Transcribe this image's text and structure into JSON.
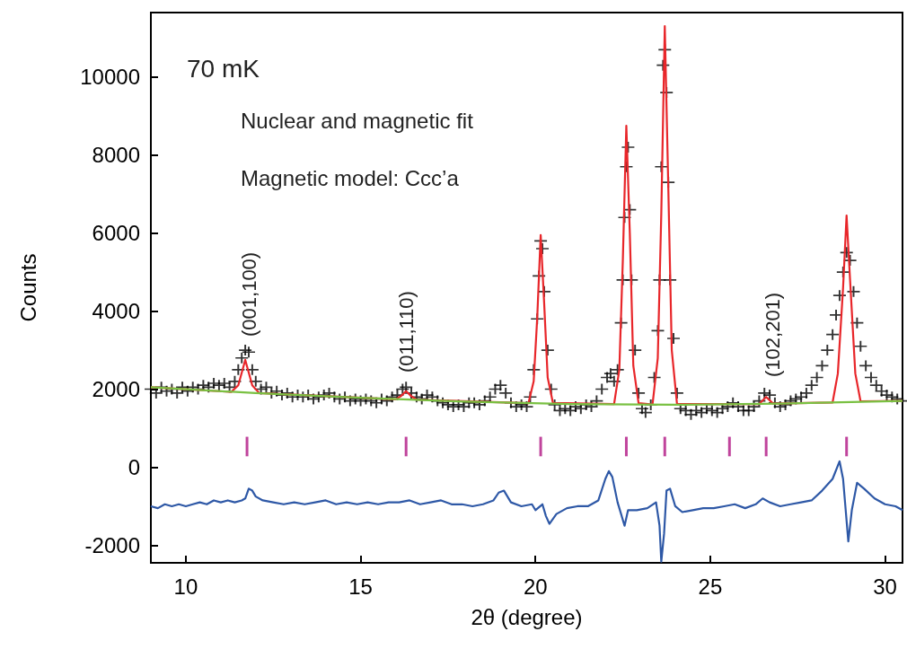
{
  "chart_data": {
    "type": "scatter",
    "xlabel": "2θ (degree)",
    "ylabel": "Counts",
    "xlim": [
      9,
      30.5
    ],
    "xticks": [
      10,
      15,
      20,
      25,
      30
    ],
    "ylim": [
      -2450,
      11650
    ],
    "yticks": [
      -2000,
      0,
      2000,
      4000,
      6000,
      8000,
      10000
    ],
    "annotations": [
      "70 mK",
      "Nuclear and magnetic fit",
      "Magnetic model: Ccc’a",
      "(001,100)",
      "(011,110)",
      "(102,201)"
    ],
    "series": [
      {
        "marker": "cross",
        "color": "#000000",
        "x": [
          9.0,
          9.15,
          9.3,
          9.45,
          9.6,
          9.75,
          9.9,
          10.05,
          10.2,
          10.35,
          10.5,
          10.65,
          10.8,
          10.95,
          11.1,
          11.25,
          11.4,
          11.5,
          11.6,
          11.7,
          11.8,
          11.9,
          12.0,
          12.15,
          12.3,
          12.45,
          12.6,
          12.75,
          12.9,
          13.05,
          13.2,
          13.35,
          13.5,
          13.65,
          13.8,
          13.95,
          14.1,
          14.25,
          14.4,
          14.55,
          14.7,
          14.85,
          15.0,
          15.15,
          15.3,
          15.45,
          15.6,
          15.75,
          15.9,
          16.05,
          16.2,
          16.3,
          16.45,
          16.6,
          16.75,
          16.9,
          17.05,
          17.2,
          17.35,
          17.5,
          17.65,
          17.8,
          17.95,
          18.1,
          18.25,
          18.4,
          18.55,
          18.7,
          18.85,
          19.0,
          19.15,
          19.3,
          19.45,
          19.6,
          19.75,
          19.85,
          19.95,
          20.05,
          20.1,
          20.15,
          20.2,
          20.25,
          20.35,
          20.45,
          20.55,
          20.7,
          20.85,
          21.0,
          21.15,
          21.3,
          21.45,
          21.6,
          21.75,
          21.9,
          22.05,
          22.15,
          22.25,
          22.35,
          22.45,
          22.5,
          22.55,
          22.6,
          22.65,
          22.7,
          22.75,
          22.85,
          22.95,
          23.05,
          23.15,
          23.3,
          23.4,
          23.5,
          23.55,
          23.6,
          23.65,
          23.7,
          23.75,
          23.8,
          23.85,
          23.95,
          24.05,
          24.15,
          24.3,
          24.45,
          24.6,
          24.75,
          24.9,
          25.05,
          25.2,
          25.35,
          25.5,
          25.65,
          25.8,
          25.95,
          26.1,
          26.25,
          26.4,
          26.55,
          26.7,
          26.85,
          27.0,
          27.15,
          27.3,
          27.45,
          27.6,
          27.75,
          27.9,
          28.05,
          28.2,
          28.35,
          28.5,
          28.6,
          28.7,
          28.8,
          28.9,
          29.0,
          29.1,
          29.2,
          29.3,
          29.45,
          29.6,
          29.75,
          29.9,
          30.05,
          30.2,
          30.35,
          30.5
        ],
        "values": [
          2000,
          1900,
          2050,
          1950,
          2000,
          1900,
          2050,
          1950,
          2050,
          2000,
          2100,
          2050,
          2150,
          2100,
          2150,
          2050,
          2200,
          2500,
          2800,
          3000,
          2950,
          2500,
          2200,
          2000,
          2050,
          1900,
          1950,
          1850,
          1900,
          1800,
          1850,
          1800,
          1850,
          1750,
          1800,
          1850,
          1900,
          1800,
          1750,
          1800,
          1700,
          1750,
          1700,
          1750,
          1700,
          1650,
          1750,
          1700,
          1800,
          1850,
          2000,
          2050,
          1900,
          1800,
          1750,
          1850,
          1800,
          1700,
          1650,
          1600,
          1550,
          1600,
          1550,
          1650,
          1650,
          1600,
          1700,
          1800,
          2000,
          2100,
          1900,
          1650,
          1550,
          1600,
          1550,
          1800,
          2500,
          3800,
          4900,
          5800,
          5600,
          4500,
          3000,
          2000,
          1600,
          1450,
          1500,
          1450,
          1550,
          1500,
          1600,
          1550,
          1700,
          2000,
          2300,
          2400,
          2200,
          2500,
          3700,
          4800,
          6400,
          7700,
          8200,
          6600,
          4800,
          3000,
          1900,
          1500,
          1400,
          1600,
          2300,
          3500,
          4800,
          7700,
          10300,
          10700,
          9600,
          7300,
          4800,
          3300,
          1900,
          1500,
          1450,
          1350,
          1450,
          1400,
          1500,
          1450,
          1400,
          1500,
          1550,
          1650,
          1550,
          1450,
          1450,
          1550,
          1700,
          1900,
          1850,
          1650,
          1550,
          1600,
          1700,
          1750,
          1800,
          1900,
          2100,
          2300,
          2600,
          3000,
          3400,
          3900,
          4400,
          5000,
          5500,
          5300,
          4500,
          3700,
          3100,
          2600,
          2300,
          2100,
          1950,
          1850,
          1800,
          1750,
          1700
        ]
      },
      {
        "type": "line",
        "marker": "none",
        "color": "#e8262a",
        "x": [
          9,
          11.3,
          11.5,
          11.7,
          11.9,
          12.1,
          16.0,
          16.15,
          16.3,
          16.45,
          16.6,
          19.8,
          19.95,
          20.05,
          20.15,
          20.25,
          20.35,
          20.5,
          22.25,
          22.4,
          22.5,
          22.6,
          22.7,
          22.8,
          22.95,
          23.35,
          23.5,
          23.6,
          23.7,
          23.8,
          23.9,
          24.05,
          26.4,
          26.6,
          26.8,
          28.5,
          28.65,
          28.8,
          28.9,
          29.0,
          29.15,
          29.3,
          30.5
        ],
        "values": [
          2050,
          1930,
          2100,
          2750,
          2100,
          1900,
          1740,
          1820,
          1950,
          1820,
          1730,
          1640,
          2200,
          3800,
          5950,
          4200,
          2300,
          1650,
          1620,
          2500,
          5300,
          8750,
          6000,
          2600,
          1640,
          1610,
          2800,
          6500,
          11300,
          7200,
          3000,
          1620,
          1620,
          1800,
          1630,
          1660,
          2400,
          4600,
          6450,
          4800,
          2400,
          1690,
          1700
        ]
      },
      {
        "type": "line",
        "marker": "none",
        "color": "#7ac143",
        "x": [
          9,
          12,
          15,
          18,
          21,
          24,
          27,
          30.5
        ],
        "values": [
          2050,
          1900,
          1780,
          1680,
          1620,
          1600,
          1630,
          1700
        ]
      },
      {
        "type": "line",
        "marker": "none",
        "color": "#2e58a6",
        "x": [
          9.0,
          9.2,
          9.4,
          9.6,
          9.8,
          10.0,
          10.2,
          10.4,
          10.6,
          10.8,
          11.0,
          11.2,
          11.4,
          11.6,
          11.7,
          11.8,
          11.9,
          12.0,
          12.2,
          12.5,
          12.8,
          13.1,
          13.4,
          13.7,
          14.0,
          14.3,
          14.6,
          14.9,
          15.2,
          15.5,
          15.8,
          16.1,
          16.4,
          16.7,
          17.0,
          17.3,
          17.6,
          17.9,
          18.2,
          18.5,
          18.8,
          18.95,
          19.1,
          19.3,
          19.6,
          19.9,
          20.0,
          20.2,
          20.3,
          20.4,
          20.6,
          20.9,
          21.2,
          21.5,
          21.8,
          22.0,
          22.1,
          22.2,
          22.35,
          22.45,
          22.55,
          22.65,
          22.9,
          23.2,
          23.45,
          23.55,
          23.6,
          23.68,
          23.75,
          23.85,
          24.0,
          24.2,
          24.5,
          24.8,
          25.1,
          25.4,
          25.7,
          26.0,
          26.3,
          26.5,
          26.7,
          27.0,
          27.3,
          27.6,
          27.9,
          28.2,
          28.5,
          28.7,
          28.8,
          28.95,
          29.05,
          29.2,
          29.4,
          29.7,
          30.0,
          30.3,
          30.5
        ],
        "values": [
          -1000,
          -1050,
          -950,
          -1000,
          -950,
          -1000,
          -950,
          -900,
          -950,
          -850,
          -900,
          -850,
          -900,
          -850,
          -800,
          -550,
          -600,
          -750,
          -850,
          -900,
          -950,
          -900,
          -950,
          -900,
          -850,
          -950,
          -900,
          -950,
          -900,
          -950,
          -900,
          -900,
          -850,
          -950,
          -900,
          -850,
          -950,
          -950,
          -1000,
          -950,
          -850,
          -650,
          -600,
          -900,
          -1000,
          -950,
          -1100,
          -950,
          -1250,
          -1450,
          -1200,
          -1050,
          -1000,
          -1000,
          -850,
          -300,
          -100,
          -250,
          -900,
          -1200,
          -1500,
          -1100,
          -1100,
          -1050,
          -900,
          -1500,
          -2420,
          -1700,
          -600,
          -550,
          -1000,
          -1150,
          -1100,
          -1050,
          -1050,
          -1000,
          -950,
          -1050,
          -950,
          -800,
          -900,
          -1000,
          -950,
          -900,
          -850,
          -600,
          -300,
          150,
          -300,
          -1900,
          -1100,
          -400,
          -550,
          -800,
          -950,
          -1000,
          -1100
        ]
      },
      {
        "type": "bar",
        "color": "#c0449c",
        "x": [
          11.75,
          16.3,
          20.15,
          22.6,
          23.7,
          25.55,
          26.6,
          28.9
        ],
        "base": [
          280,
          280,
          280,
          280,
          280,
          280,
          280,
          280
        ],
        "values": [
          500,
          500,
          500,
          500,
          500,
          500,
          500,
          500
        ]
      }
    ]
  }
}
